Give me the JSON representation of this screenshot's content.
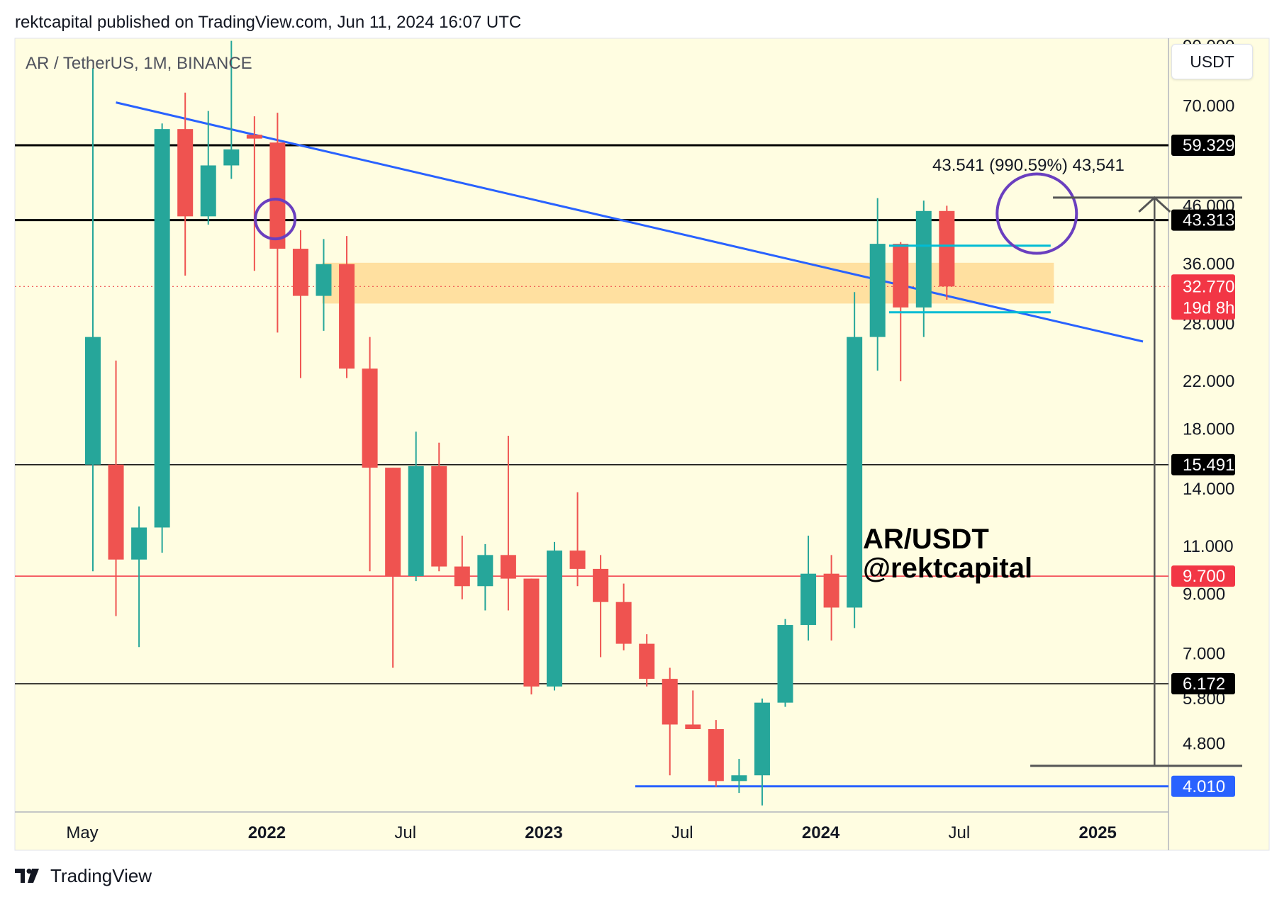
{
  "header": {
    "text": "rektcapital published on TradingView.com, Jun 11, 2024 16:07 UTC"
  },
  "symbol_title": "AR / TetherUS, 1M, BINANCE",
  "currency_button": "USDT",
  "footer": {
    "brand": "TradingView"
  },
  "colors": {
    "background": "#fffde1",
    "up": "#26a69a",
    "down": "#ef5350",
    "trendline": "#2962ff",
    "zone": "#ffd58a",
    "circle": "#6a3fbf",
    "projection": "#555555"
  },
  "chart_data": {
    "type": "candlestick",
    "scale": "log",
    "ylim": [
      3.6,
      93
    ],
    "x_ticks": [
      {
        "label": "May",
        "t": 0,
        "bold": false
      },
      {
        "label": "2022",
        "t": 8,
        "bold": true
      },
      {
        "label": "Jul",
        "t": 14,
        "bold": false
      },
      {
        "label": "2023",
        "t": 20,
        "bold": true
      },
      {
        "label": "Jul",
        "t": 26,
        "bold": false
      },
      {
        "label": "2024",
        "t": 32,
        "bold": true
      },
      {
        "label": "Jul",
        "t": 38,
        "bold": false
      },
      {
        "label": "2025",
        "t": 44,
        "bold": true
      }
    ],
    "y_ticks": [
      "90.000",
      "70.000",
      "46.000",
      "36.000",
      "28.000",
      "22.000",
      "18.000",
      "14.000",
      "11.000",
      "9.000",
      "7.000",
      "5.800",
      "4.800"
    ],
    "candles": [
      {
        "o": 15.5,
        "h": 82,
        "l": 9.9,
        "c": 26.5
      },
      {
        "o": 15.5,
        "h": 24,
        "l": 8.2,
        "c": 10.4
      },
      {
        "o": 10.4,
        "h": 13,
        "l": 7.2,
        "c": 11.9
      },
      {
        "o": 11.9,
        "h": 65,
        "l": 10.7,
        "c": 63.5
      },
      {
        "o": 63.5,
        "h": 74,
        "l": 34.3,
        "c": 44.0
      },
      {
        "o": 44.0,
        "h": 68.5,
        "l": 42.5,
        "c": 54.5
      },
      {
        "o": 54.5,
        "h": 92,
        "l": 51.5,
        "c": 58.3
      },
      {
        "o": 62,
        "h": 67,
        "l": 35,
        "c": 61
      },
      {
        "o": 60,
        "h": 68,
        "l": 27,
        "c": 38.4
      },
      {
        "o": 38.4,
        "h": 41.5,
        "l": 22.3,
        "c": 31.5
      },
      {
        "o": 31.5,
        "h": 40,
        "l": 27.2,
        "c": 36
      },
      {
        "o": 36,
        "h": 40.5,
        "l": 22.3,
        "c": 23.2
      },
      {
        "o": 23.2,
        "h": 26.5,
        "l": 9.9,
        "c": 15.3
      },
      {
        "o": 15.3,
        "h": 15.3,
        "l": 6.6,
        "c": 9.7
      },
      {
        "o": 9.7,
        "h": 17.8,
        "l": 9.5,
        "c": 15.4
      },
      {
        "o": 15.4,
        "h": 17.0,
        "l": 9.9,
        "c": 10.1
      },
      {
        "o": 10.1,
        "h": 11.5,
        "l": 8.8,
        "c": 9.3
      },
      {
        "o": 9.3,
        "h": 11.1,
        "l": 8.4,
        "c": 10.6
      },
      {
        "o": 10.6,
        "h": 17.5,
        "l": 8.4,
        "c": 9.6
      },
      {
        "o": 9.6,
        "h": 9.6,
        "l": 5.9,
        "c": 6.1
      },
      {
        "o": 6.1,
        "h": 11.2,
        "l": 6.0,
        "c": 10.8
      },
      {
        "o": 10.8,
        "h": 13.8,
        "l": 9.3,
        "c": 10.0
      },
      {
        "o": 10.0,
        "h": 10.6,
        "l": 6.9,
        "c": 8.7
      },
      {
        "o": 8.7,
        "h": 9.4,
        "l": 7.1,
        "c": 7.3
      },
      {
        "o": 7.3,
        "h": 7.6,
        "l": 6.1,
        "c": 6.3
      },
      {
        "o": 6.3,
        "h": 6.6,
        "l": 4.2,
        "c": 5.2
      },
      {
        "o": 5.2,
        "h": 6.0,
        "l": 5.1,
        "c": 5.1
      },
      {
        "o": 5.1,
        "h": 5.3,
        "l": 4.0,
        "c": 4.1
      },
      {
        "o": 4.1,
        "h": 4.5,
        "l": 3.9,
        "c": 4.2
      },
      {
        "o": 4.2,
        "h": 5.8,
        "l": 3.7,
        "c": 5.7
      },
      {
        "o": 5.7,
        "h": 8.1,
        "l": 5.6,
        "c": 7.9
      },
      {
        "o": 7.9,
        "h": 11.5,
        "l": 7.4,
        "c": 9.8
      },
      {
        "o": 9.8,
        "h": 10.6,
        "l": 7.4,
        "c": 8.5
      },
      {
        "o": 8.5,
        "h": 32.0,
        "l": 7.8,
        "c": 26.5
      },
      {
        "o": 26.5,
        "h": 47.5,
        "l": 23.0,
        "c": 39.2
      },
      {
        "o": 39.2,
        "h": 39.5,
        "l": 22.0,
        "c": 30.0
      },
      {
        "o": 30.0,
        "h": 47.0,
        "l": 26.5,
        "c": 45.0
      },
      {
        "o": 45.0,
        "h": 46.0,
        "l": 31.0,
        "c": 32.77
      }
    ],
    "levels": [
      {
        "value": 59.329,
        "label": "59.329",
        "line": "#000000",
        "width": 3,
        "badge": "#000000",
        "text": "#ffffff"
      },
      {
        "value": 43.313,
        "label": "43.313",
        "line": "#000000",
        "width": 3,
        "badge": "#000000",
        "text": "#ffffff"
      },
      {
        "value": 15.491,
        "label": "15.491",
        "line": "#000000",
        "width": 1.5,
        "badge": "#000000",
        "text": "#ffffff"
      },
      {
        "value": 9.7,
        "label": "9.700",
        "line": "#f23645",
        "width": 1.5,
        "badge": "#f23645",
        "text": "#ffffff"
      },
      {
        "value": 6.172,
        "label": "6.172",
        "line": "#000000",
        "width": 1.5,
        "badge": "#000000",
        "text": "#ffffff"
      }
    ],
    "support_line": {
      "value": 4.01,
      "label": "4.010",
      "t_start": 23.5
    },
    "current_price": {
      "value": 32.77,
      "label": "32.770",
      "countdown": "19d 8h"
    },
    "zone": {
      "t_start": 10,
      "t_end": 41.7,
      "low": 30.5,
      "high": 36.2
    },
    "trendline": {
      "t1": 1.0,
      "p1": 71.0,
      "t2": 45.5,
      "p2": 26.0
    },
    "range_lines": [
      {
        "value": 38.9,
        "t_start": 34.5,
        "t_end": 41.5
      },
      {
        "value": 29.4,
        "t_start": 34.5,
        "t_end": 41.5
      }
    ],
    "circles": [
      {
        "t": 7.9,
        "p": 43.5,
        "r": 28
      },
      {
        "t": 40.9,
        "p": 44.5,
        "r": 56
      }
    ],
    "projection": {
      "t_start": 41.6,
      "t_end": 49.8,
      "high": 47.6,
      "low": 4.37,
      "arrow_t": 46.0,
      "label": "43.541 (990.59%) 43,541"
    },
    "watermark": {
      "line1": "AR/USDT",
      "line2": "@rektcapital"
    }
  }
}
